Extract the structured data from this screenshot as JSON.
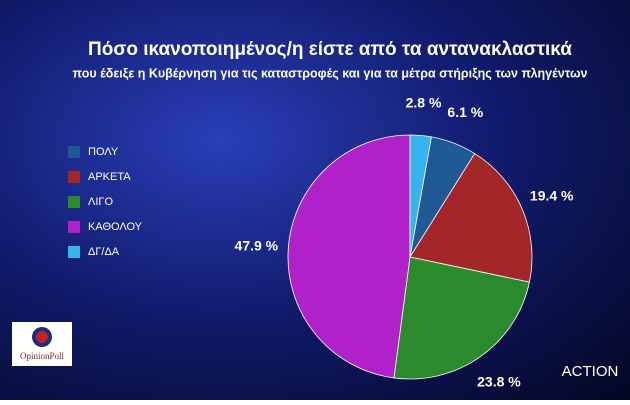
{
  "chart_data": {
    "type": "pie",
    "title": "Πόσο ικανοποιημένος/η είστε από τα αντανακλαστικά",
    "subtitle": "που έδειξε η Κυβέρνηση για τις καταστροφές και για τα μέτρα στήριξης των πληγέντων",
    "categories": [
      "ΠΟΛΥ",
      "ΑΡΚΕΤΑ",
      "ΛΙΓΟ",
      "ΚΑΘΟΛΟΥ",
      "ΔΓ/ΔΑ"
    ],
    "values": [
      6.1,
      19.4,
      23.8,
      47.9,
      2.8
    ],
    "value_labels": [
      "6.1 %",
      "19.4 %",
      "23.8 %",
      "47.9 %",
      "2.8 %"
    ],
    "colors": [
      "#1f5a96",
      "#a3262a",
      "#2b8a2b",
      "#b021c9",
      "#35b4ef"
    ],
    "legend": "left"
  },
  "logos": {
    "pollster": "OpinionPoll",
    "channel": "ACTION"
  }
}
